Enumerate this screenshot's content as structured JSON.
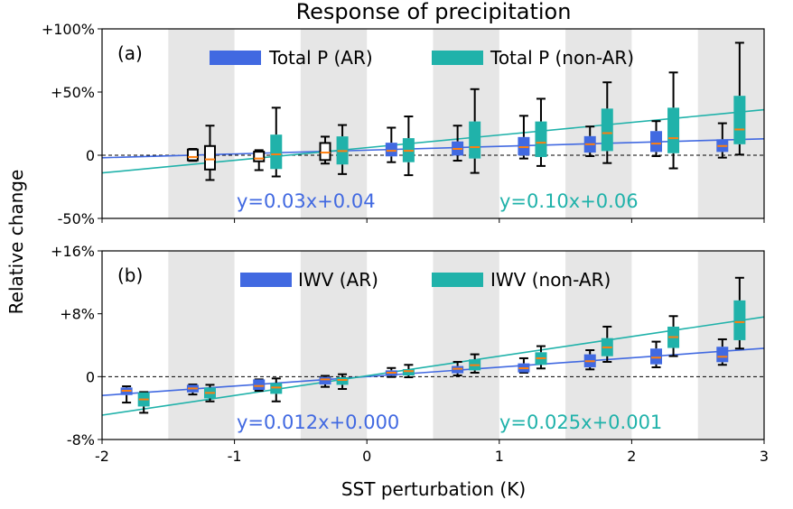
{
  "chart_data": {
    "type": "box",
    "title": "Response of precipitation",
    "xlabel": "SST perturbation (K)",
    "ylabel": "Relative change",
    "xlim": [
      -2,
      3
    ],
    "xticks": [
      -2,
      -1,
      0,
      1,
      2,
      3
    ],
    "xtick_labels": [
      "-2",
      "-1",
      "0",
      "1",
      "2",
      "3"
    ],
    "shaded_bands": [
      [
        -1.5,
        -1
      ],
      [
        -0.5,
        0
      ],
      [
        0.5,
        1
      ],
      [
        1.5,
        2
      ],
      [
        2.5,
        3
      ]
    ],
    "colors": {
      "ar": "#4169E1",
      "non_ar": "#20B2AA",
      "median": "#FF7F0E",
      "shade": "#E6E6E6"
    },
    "panels": [
      {
        "label": "(a)",
        "ylim": [
          -50,
          100
        ],
        "unit": "%",
        "yticks": [
          -50,
          0,
          50,
          100
        ],
        "ytick_labels": [
          "-50%",
          "0",
          "+50%",
          "+100%"
        ],
        "series": [
          {
            "name": "Total P (AR)",
            "color_key": "ar",
            "fit": {
              "slope": 3,
              "intercept": 4,
              "label": "y=0.03x+0.04"
            },
            "boxes": [
              {
                "x": -1.25,
                "whislo": -4.5,
                "q1": -4,
                "med": -1.4,
                "q3": 4.5,
                "whishi": 5,
                "filled": false
              },
              {
                "x": -0.75,
                "whislo": -11.8,
                "q1": -4.8,
                "med": -2.6,
                "q3": 2.8,
                "whishi": 4,
                "filled": false
              },
              {
                "x": -0.25,
                "whislo": -6.6,
                "q1": -3.8,
                "med": 2.1,
                "q3": 9.7,
                "whishi": 14.7,
                "filled": false
              },
              {
                "x": 0.25,
                "whislo": -5.5,
                "q1": -0.9,
                "med": 3.5,
                "q3": 9.9,
                "whishi": 21.8,
                "filled": true
              },
              {
                "x": 0.75,
                "whislo": -4.3,
                "q1": -0.2,
                "med": 5,
                "q3": 10.9,
                "whishi": 23.4,
                "filled": true
              },
              {
                "x": 1.25,
                "whislo": -2.6,
                "q1": -0.2,
                "med": 6.4,
                "q3": 14.4,
                "whishi": 31.2,
                "filled": true
              },
              {
                "x": 1.75,
                "whislo": -0.7,
                "q1": 2.1,
                "med": 8.7,
                "q3": 15.1,
                "whishi": 22.7,
                "filled": true
              },
              {
                "x": 2.25,
                "whislo": -0.7,
                "q1": 2.6,
                "med": 9.2,
                "q3": 19.1,
                "whishi": 27,
                "filled": true
              },
              {
                "x": 2.75,
                "whislo": -1.9,
                "q1": 2.6,
                "med": 7.3,
                "q3": 12.6,
                "whishi": 25.3,
                "filled": true
              }
            ]
          },
          {
            "name": "Total P (non-AR)",
            "color_key": "non_ar",
            "fit": {
              "slope": 10,
              "intercept": 6,
              "label": "y=0.10x+0.06"
            },
            "boxes": [
              {
                "x": -1.25,
                "whislo": -19.6,
                "q1": -11.3,
                "med": -3.3,
                "q3": 7.3,
                "whishi": 23.4,
                "filled": false
              },
              {
                "x": -0.75,
                "whislo": -16.8,
                "q1": -10.9,
                "med": 0.7,
                "q3": 16.3,
                "whishi": 37.6,
                "filled": true
              },
              {
                "x": -0.25,
                "whislo": -14.9,
                "q1": -7.3,
                "med": 3.3,
                "q3": 14.9,
                "whishi": 23.9,
                "filled": true
              },
              {
                "x": 0.25,
                "whislo": -15.8,
                "q1": -5.5,
                "med": 3.5,
                "q3": 13.5,
                "whishi": 30.7,
                "filled": true
              },
              {
                "x": 0.75,
                "whislo": -14,
                "q1": -2.6,
                "med": 6.4,
                "q3": 26.7,
                "whishi": 52.3,
                "filled": true
              },
              {
                "x": 1.25,
                "whislo": -8.5,
                "q1": -1.4,
                "med": 9.9,
                "q3": 26.7,
                "whishi": 44.7,
                "filled": true
              },
              {
                "x": 1.75,
                "whislo": -6.2,
                "q1": 3.3,
                "med": 17.5,
                "q3": 36.9,
                "whishi": 57.7,
                "filled": true
              },
              {
                "x": 2.25,
                "whislo": -10.4,
                "q1": 1.6,
                "med": 13.5,
                "q3": 37.6,
                "whishi": 65.5,
                "filled": true
              },
              {
                "x": 2.75,
                "whislo": 0.5,
                "q1": 8.7,
                "med": 20.4,
                "q3": 47,
                "whishi": 89,
                "filled": true
              }
            ]
          }
        ]
      },
      {
        "label": "(b)",
        "ylim": [
          -8,
          16
        ],
        "unit": "%",
        "yticks": [
          -8,
          0,
          8,
          16
        ],
        "ytick_labels": [
          "-8%",
          "0",
          "+8%",
          "+16%"
        ],
        "series": [
          {
            "name": "IWV (AR)",
            "color_key": "ar",
            "fit": {
              "slope": 1.2,
              "intercept": 0.0,
              "label": "y=0.012x+0.000"
            },
            "boxes": [
              {
                "x": -1.75,
                "whislo": -3.3,
                "q1": -2.34,
                "med": -1.8,
                "q3": -1.38,
                "whishi": -1.23,
                "filled": true
              },
              {
                "x": -1.25,
                "whislo": -2.27,
                "q1": -2.0,
                "med": -1.5,
                "q3": -1.04,
                "whishi": -1.0,
                "filled": true
              },
              {
                "x": -0.75,
                "whislo": -1.8,
                "q1": -1.69,
                "med": -1.19,
                "q3": -0.35,
                "whishi": -0.35,
                "filled": true
              },
              {
                "x": -0.25,
                "whislo": -1.3,
                "q1": -1.0,
                "med": -0.35,
                "q3": -0.04,
                "whishi": 0.1,
                "filled": true
              },
              {
                "x": 0.25,
                "whislo": -0.04,
                "q1": 0.1,
                "med": 0.5,
                "q3": 0.8,
                "whishi": 1.1,
                "filled": true
              },
              {
                "x": 0.75,
                "whislo": 0.15,
                "q1": 0.43,
                "med": 1.0,
                "q3": 1.35,
                "whishi": 1.88,
                "filled": true
              },
              {
                "x": 1.25,
                "whislo": 0.5,
                "q1": 0.54,
                "med": 1.07,
                "q3": 1.69,
                "whishi": 2.34,
                "filled": true
              },
              {
                "x": 1.75,
                "whislo": 0.92,
                "q1": 1.19,
                "med": 1.96,
                "q3": 2.84,
                "whishi": 3.37,
                "filled": true
              },
              {
                "x": 2.25,
                "whislo": 1.19,
                "q1": 1.57,
                "med": 2.42,
                "q3": 3.57,
                "whishi": 4.45,
                "filled": true
              },
              {
                "x": 2.75,
                "whislo": 1.5,
                "q1": 1.84,
                "med": 2.53,
                "q3": 3.8,
                "whishi": 4.75,
                "filled": true
              }
            ]
          },
          {
            "name": "IWV (non-AR)",
            "color_key": "non_ar",
            "fit": {
              "slope": 2.5,
              "intercept": 0.1,
              "label": "y=0.025x+0.001"
            },
            "boxes": [
              {
                "x": -1.75,
                "whislo": -4.6,
                "q1": -3.8,
                "med": -2.9,
                "q3": -2.0,
                "whishi": -1.96,
                "filled": true
              },
              {
                "x": -1.25,
                "whislo": -3.15,
                "q1": -2.76,
                "med": -2.07,
                "q3": -1.38,
                "whishi": -1.04,
                "filled": true
              },
              {
                "x": -0.75,
                "whislo": -3.15,
                "q1": -2.19,
                "med": -1.38,
                "q3": -0.8,
                "whishi": -0.23,
                "filled": true
              },
              {
                "x": -0.25,
                "whislo": -1.57,
                "q1": -1.04,
                "med": -0.42,
                "q3": -0.08,
                "whishi": 0.3,
                "filled": true
              },
              {
                "x": 0.25,
                "whislo": -0.08,
                "q1": 0.15,
                "med": 0.7,
                "q3": 0.96,
                "whishi": 1.5,
                "filled": true
              },
              {
                "x": 0.75,
                "whislo": 0.5,
                "q1": 0.8,
                "med": 1.46,
                "q3": 2.2,
                "whishi": 2.84,
                "filled": true
              },
              {
                "x": 1.25,
                "whislo": 1.04,
                "q1": 1.5,
                "med": 2.34,
                "q3": 3.1,
                "whishi": 3.88,
                "filled": true
              },
              {
                "x": 1.75,
                "whislo": 1.88,
                "q1": 2.6,
                "med": 3.72,
                "q3": 4.9,
                "whishi": 6.36,
                "filled": true
              },
              {
                "x": 2.25,
                "whislo": 2.61,
                "q1": 3.65,
                "med": 5.03,
                "q3": 6.36,
                "whishi": 7.7,
                "filled": true
              },
              {
                "x": 2.75,
                "whislo": 3.57,
                "q1": 4.64,
                "med": 6.94,
                "q3": 9.7,
                "whishi": 12.58,
                "filled": true
              }
            ]
          }
        ]
      }
    ]
  }
}
